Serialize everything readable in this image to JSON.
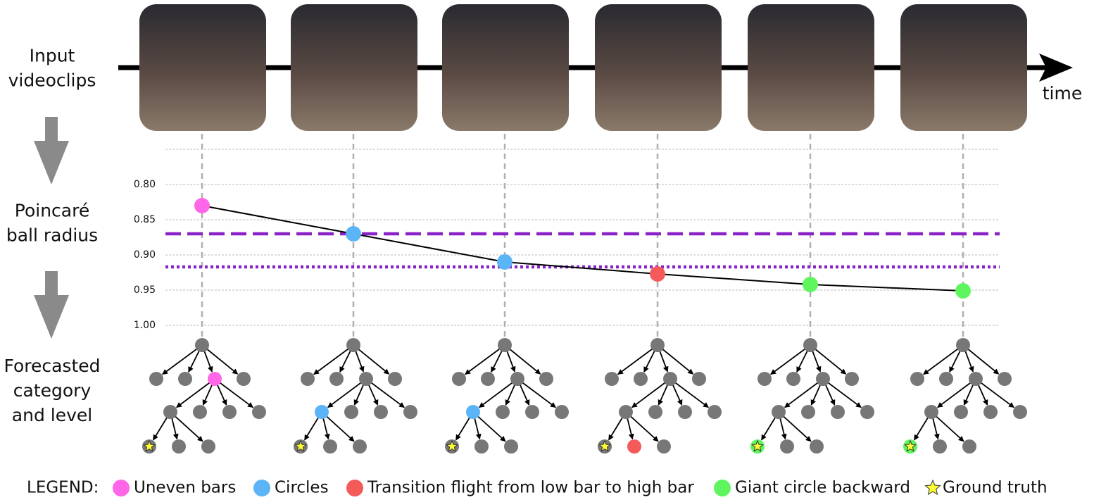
{
  "labels": {
    "input": [
      "Input",
      "videoclips"
    ],
    "radius": [
      "Poincaré",
      "ball radius"
    ],
    "forecast": [
      "Forecasted",
      "category",
      "and level"
    ],
    "time": "time"
  },
  "chart_data": {
    "type": "line",
    "ylim": [
      0.75,
      1.0
    ],
    "inverted": true,
    "grid": true,
    "yticks": [
      {
        "value": 0.8,
        "label": "0.80"
      },
      0.85,
      {
        "value": 0.9,
        "label": "0.90"
      },
      0.95,
      {
        "value": 1.0,
        "label": "1.00"
      }
    ],
    "series": [
      {
        "values": [
          0.83,
          0.87,
          0.91,
          0.927,
          0.942,
          0.951
        ],
        "color": "#000000",
        "point_colors": [
          "#ff66e8",
          "#5ab4f5",
          "#5ab4f5",
          "#f55a5a",
          "#5ef55e",
          "#5ef55e"
        ]
      }
    ],
    "hlines": [
      {
        "value": 0.87,
        "style": "dashed",
        "color": "#8a22c8"
      },
      {
        "value": 0.917,
        "style": "dotted",
        "color": "#8a22c8"
      }
    ]
  },
  "trees": [
    {
      "level": 1,
      "node": 2,
      "class": 0
    },
    {
      "level": 2,
      "node": 0,
      "class": 1
    },
    {
      "level": 2,
      "node": 0,
      "class": 1
    },
    {
      "level": 3,
      "node": 1,
      "class": 2
    },
    {
      "level": 3,
      "node": 0,
      "class": 3
    },
    {
      "level": 3,
      "node": 0,
      "class": 3
    }
  ],
  "legend": {
    "title": "LEGEND:",
    "items": [
      {
        "name": "Uneven bars",
        "color": "#ff66e8"
      },
      {
        "name": "Circles",
        "color": "#5ab4f5"
      },
      {
        "name": "Transition flight from low bar to high bar",
        "color": "#f55a5a"
      },
      {
        "name": "Giant circle backward",
        "color": "#5ef55e"
      },
      {
        "name": "Ground truth",
        "color": "#ffff33",
        "marker": "star"
      }
    ]
  }
}
